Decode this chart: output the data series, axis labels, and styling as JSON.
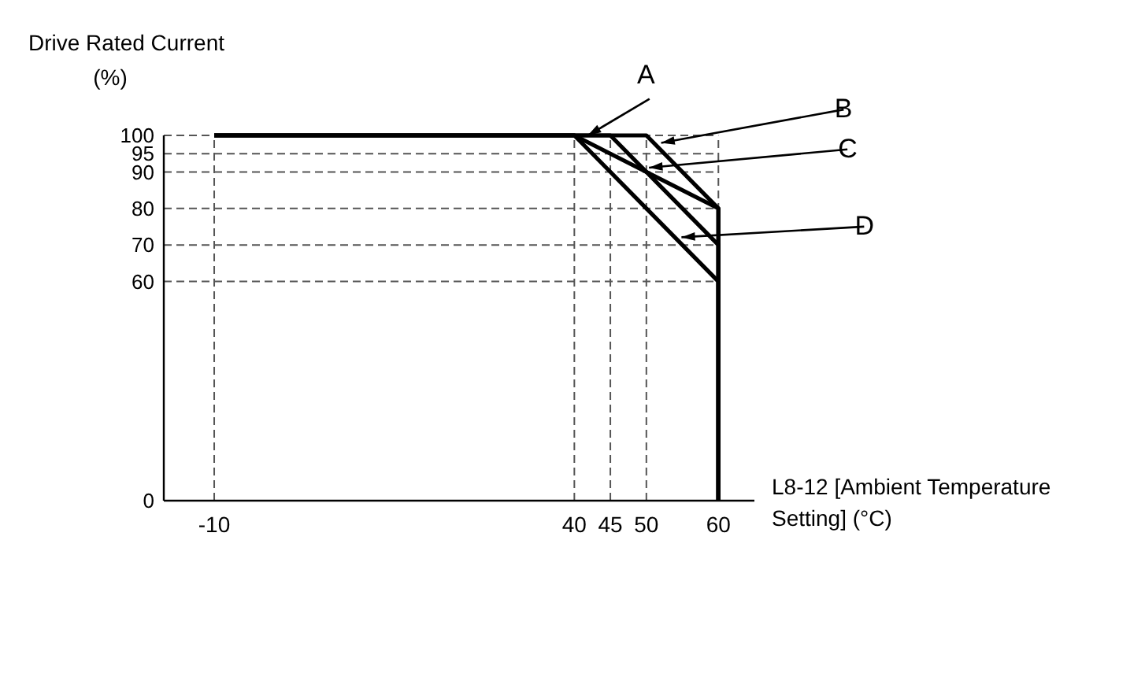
{
  "chart_data": {
    "type": "line",
    "ylabel": "Drive Rated Current (%)",
    "xlabel": "L8-12 [Ambient Temperature Setting] (°C)",
    "xlim": [
      -17,
      65
    ],
    "xticks": [
      -10,
      40,
      45,
      50,
      60
    ],
    "ylim": [
      0,
      100
    ],
    "yticks": [
      0,
      60,
      70,
      80,
      90,
      95,
      100
    ],
    "grid": true,
    "line_style": "solid",
    "marker": "none",
    "series": [
      {
        "name": "A",
        "color": "#000000",
        "x": [
          -10,
          40,
          60,
          60
        ],
        "values": [
          100,
          100,
          80,
          0
        ]
      },
      {
        "name": "B",
        "color": "#000000",
        "x": [
          -10,
          50,
          60,
          60
        ],
        "values": [
          100,
          100,
          80,
          0
        ]
      },
      {
        "name": "C",
        "color": "#000000",
        "x": [
          -10,
          45,
          60,
          60
        ],
        "values": [
          100,
          100,
          70,
          0
        ]
      },
      {
        "name": "D",
        "color": "#000000",
        "x": [
          -10,
          40,
          60,
          60
        ],
        "values": [
          100,
          100,
          60,
          0
        ]
      }
    ]
  }
}
